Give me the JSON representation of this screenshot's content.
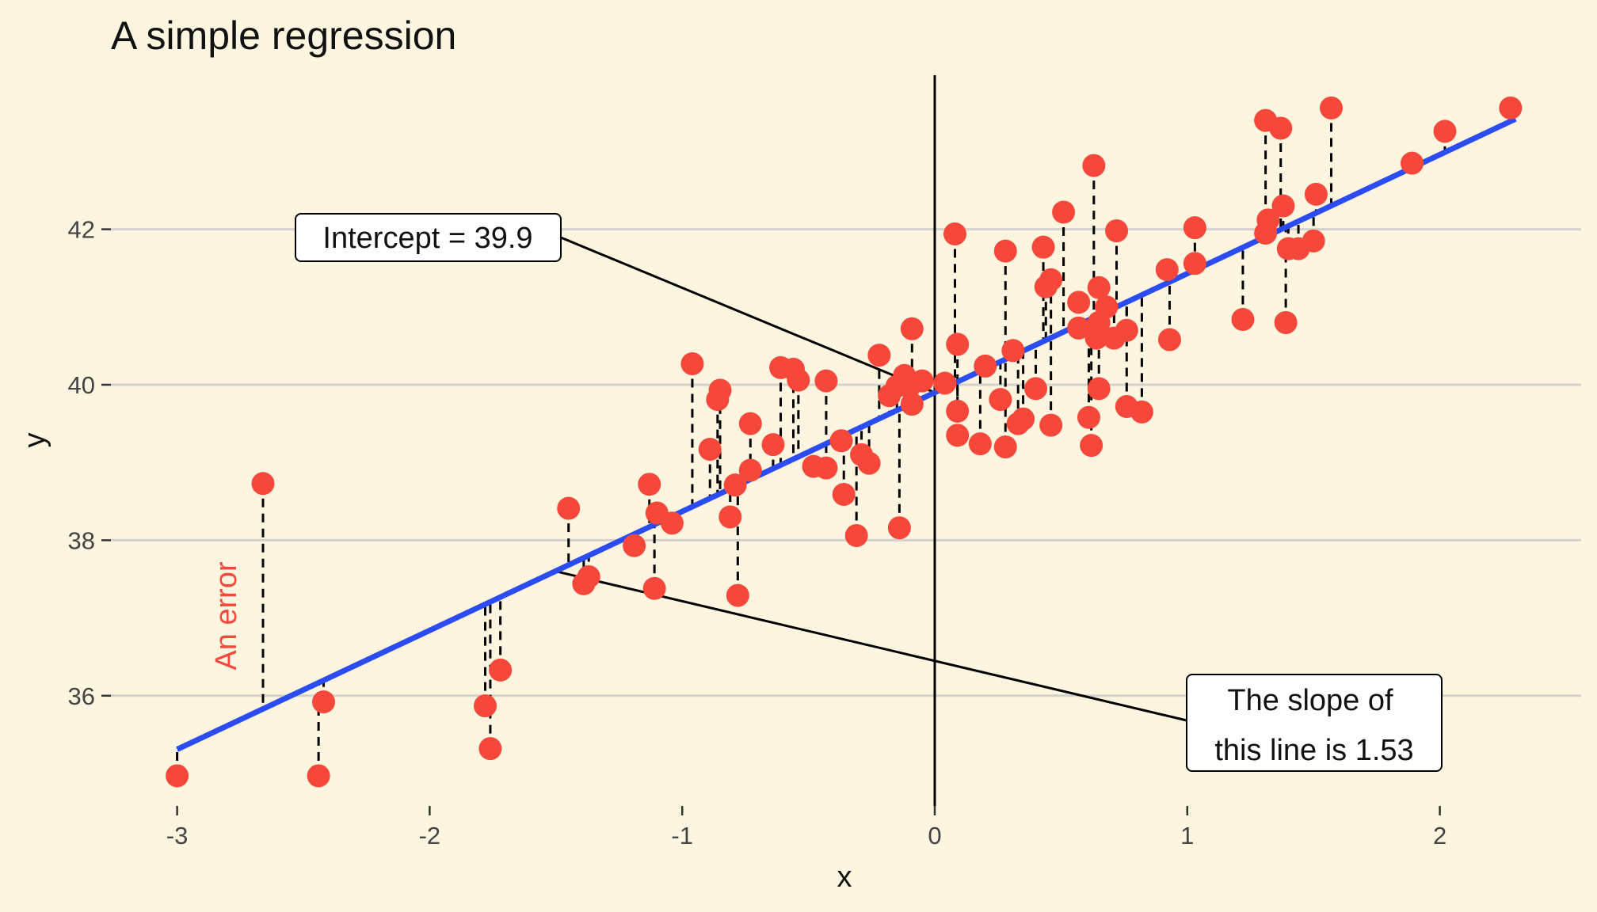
{
  "colors": {
    "background": "#fdf5df",
    "points": "#f5483a",
    "line": "#2b4cf3",
    "error_label": "#f5483a"
  },
  "chart_data": {
    "type": "scatter",
    "title": "A simple regression",
    "xlabel": "x",
    "ylabel": "y",
    "xlim": [
      -3.1,
      2.6
    ],
    "ylim": [
      34.4,
      44.3
    ],
    "x_ticks": [
      -3,
      -2,
      -1,
      0,
      1,
      2
    ],
    "y_ticks": [
      36,
      38,
      40,
      42
    ],
    "grid": "horizontal major gridlines",
    "vline_x": 0,
    "regression": {
      "intercept": 39.9,
      "slope": 1.53,
      "x_range": [
        -3,
        2.3
      ]
    },
    "points": [
      {
        "x": -3.0,
        "y": 34.97
      },
      {
        "x": -2.66,
        "y": 38.73
      },
      {
        "x": -2.44,
        "y": 34.97
      },
      {
        "x": -2.42,
        "y": 35.92
      },
      {
        "x": -1.78,
        "y": 35.87
      },
      {
        "x": -1.76,
        "y": 35.32
      },
      {
        "x": -1.72,
        "y": 36.33
      },
      {
        "x": -1.45,
        "y": 38.41
      },
      {
        "x": -1.39,
        "y": 37.44
      },
      {
        "x": -1.37,
        "y": 37.53
      },
      {
        "x": -1.19,
        "y": 37.93
      },
      {
        "x": -1.13,
        "y": 38.72
      },
      {
        "x": -1.11,
        "y": 37.38
      },
      {
        "x": -1.1,
        "y": 38.35
      },
      {
        "x": -1.04,
        "y": 38.22
      },
      {
        "x": -0.96,
        "y": 40.27
      },
      {
        "x": -0.89,
        "y": 39.17
      },
      {
        "x": -0.86,
        "y": 39.81
      },
      {
        "x": -0.85,
        "y": 39.93
      },
      {
        "x": -0.81,
        "y": 38.3
      },
      {
        "x": -0.79,
        "y": 38.71
      },
      {
        "x": -0.78,
        "y": 37.29
      },
      {
        "x": -0.73,
        "y": 39.5
      },
      {
        "x": -0.73,
        "y": 38.9
      },
      {
        "x": -0.64,
        "y": 39.23
      },
      {
        "x": -0.61,
        "y": 40.22
      },
      {
        "x": -0.56,
        "y": 40.2
      },
      {
        "x": -0.54,
        "y": 40.06
      },
      {
        "x": -0.48,
        "y": 38.95
      },
      {
        "x": -0.43,
        "y": 38.93
      },
      {
        "x": -0.43,
        "y": 40.05
      },
      {
        "x": -0.37,
        "y": 39.28
      },
      {
        "x": -0.36,
        "y": 38.59
      },
      {
        "x": -0.31,
        "y": 38.06
      },
      {
        "x": -0.29,
        "y": 39.1
      },
      {
        "x": -0.26,
        "y": 38.99
      },
      {
        "x": -0.22,
        "y": 40.38
      },
      {
        "x": -0.18,
        "y": 39.86
      },
      {
        "x": -0.15,
        "y": 39.98
      },
      {
        "x": -0.14,
        "y": 38.16
      },
      {
        "x": -0.12,
        "y": 40.12
      },
      {
        "x": -0.1,
        "y": 39.98
      },
      {
        "x": -0.09,
        "y": 39.75
      },
      {
        "x": -0.09,
        "y": 40.72
      },
      {
        "x": -0.05,
        "y": 40.05
      },
      {
        "x": 0.04,
        "y": 40.02
      },
      {
        "x": 0.08,
        "y": 41.94
      },
      {
        "x": 0.09,
        "y": 40.52
      },
      {
        "x": 0.09,
        "y": 39.66
      },
      {
        "x": 0.09,
        "y": 39.35
      },
      {
        "x": 0.18,
        "y": 39.24
      },
      {
        "x": 0.2,
        "y": 40.24
      },
      {
        "x": 0.26,
        "y": 39.81
      },
      {
        "x": 0.28,
        "y": 39.2
      },
      {
        "x": 0.28,
        "y": 41.72
      },
      {
        "x": 0.31,
        "y": 40.44
      },
      {
        "x": 0.33,
        "y": 39.5
      },
      {
        "x": 0.35,
        "y": 39.56
      },
      {
        "x": 0.4,
        "y": 39.95
      },
      {
        "x": 0.43,
        "y": 41.77
      },
      {
        "x": 0.44,
        "y": 41.26
      },
      {
        "x": 0.46,
        "y": 41.35
      },
      {
        "x": 0.46,
        "y": 39.48
      },
      {
        "x": 0.51,
        "y": 42.22
      },
      {
        "x": 0.57,
        "y": 40.73
      },
      {
        "x": 0.57,
        "y": 41.06
      },
      {
        "x": 0.61,
        "y": 39.58
      },
      {
        "x": 0.62,
        "y": 39.22
      },
      {
        "x": 0.63,
        "y": 42.82
      },
      {
        "x": 0.64,
        "y": 40.6
      },
      {
        "x": 0.65,
        "y": 40.8
      },
      {
        "x": 0.65,
        "y": 41.25
      },
      {
        "x": 0.65,
        "y": 39.95
      },
      {
        "x": 0.68,
        "y": 41.0
      },
      {
        "x": 0.71,
        "y": 40.6
      },
      {
        "x": 0.72,
        "y": 41.98
      },
      {
        "x": 0.76,
        "y": 39.72
      },
      {
        "x": 0.76,
        "y": 40.7
      },
      {
        "x": 0.82,
        "y": 39.65
      },
      {
        "x": 0.93,
        "y": 40.58
      },
      {
        "x": 0.92,
        "y": 41.48
      },
      {
        "x": 1.03,
        "y": 41.56
      },
      {
        "x": 1.03,
        "y": 42.02
      },
      {
        "x": 1.22,
        "y": 40.84
      },
      {
        "x": 1.31,
        "y": 43.4
      },
      {
        "x": 1.31,
        "y": 41.95
      },
      {
        "x": 1.32,
        "y": 42.12
      },
      {
        "x": 1.37,
        "y": 43.3
      },
      {
        "x": 1.38,
        "y": 42.3
      },
      {
        "x": 1.39,
        "y": 40.8
      },
      {
        "x": 1.4,
        "y": 41.75
      },
      {
        "x": 1.44,
        "y": 41.75
      },
      {
        "x": 1.5,
        "y": 41.85
      },
      {
        "x": 1.51,
        "y": 42.45
      },
      {
        "x": 1.57,
        "y": 43.56
      },
      {
        "x": 1.89,
        "y": 42.85
      },
      {
        "x": 2.02,
        "y": 43.26
      },
      {
        "x": 2.28,
        "y": 43.56
      }
    ],
    "annotations": {
      "intercept": {
        "text": "Intercept = 39.9",
        "target": {
          "x": 0,
          "y": 39.9
        }
      },
      "slope": {
        "lines": [
          "The slope of",
          "this line is 1.53"
        ],
        "target": {
          "x": -1.5,
          "y": 37.6
        }
      },
      "error": {
        "text": "An error"
      }
    }
  }
}
